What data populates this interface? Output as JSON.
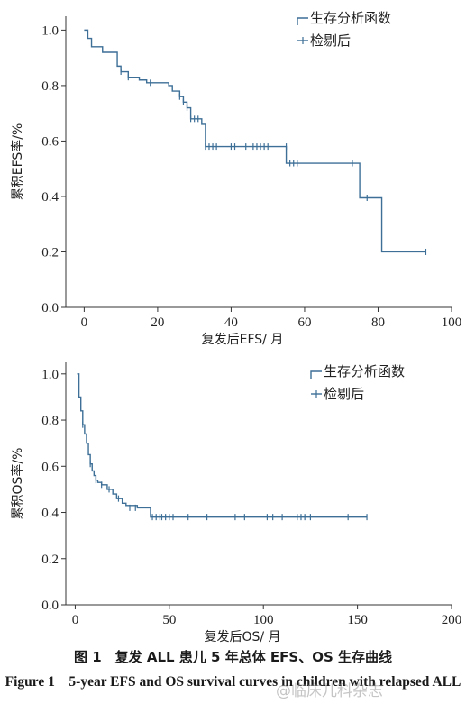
{
  "chart_data": [
    {
      "type": "line",
      "title": "",
      "xlabel": "复发后EFS/ 月",
      "ylabel": "累积EFS率/%",
      "xlim": [
        -5,
        100
      ],
      "ylim": [
        0.0,
        1.05
      ],
      "xticks": [
        0,
        20,
        40,
        60,
        80,
        100
      ],
      "xtick_labels": [
        "0",
        "20",
        "40",
        "60",
        "80",
        "100"
      ],
      "yticks": [
        0.0,
        0.2,
        0.4,
        0.6,
        0.8,
        1.0
      ],
      "ytick_labels": [
        "0.0",
        "0.2",
        "0.4",
        "0.6",
        "0.8",
        "1.0"
      ],
      "legend": [
        "生存分析函数",
        "检剔后"
      ],
      "legend_position": "top-right",
      "grid": false,
      "survival_steps": [
        [
          0,
          1.0
        ],
        [
          1,
          0.97
        ],
        [
          2,
          0.94
        ],
        [
          5,
          0.92
        ],
        [
          9,
          0.87
        ],
        [
          10,
          0.85
        ],
        [
          12,
          0.83
        ],
        [
          15,
          0.82
        ],
        [
          17,
          0.81
        ],
        [
          23,
          0.8
        ],
        [
          24,
          0.78
        ],
        [
          26,
          0.76
        ],
        [
          27,
          0.74
        ],
        [
          28,
          0.72
        ],
        [
          29,
          0.68
        ],
        [
          32,
          0.66
        ],
        [
          33,
          0.58
        ],
        [
          55,
          0.52
        ],
        [
          75,
          0.395
        ],
        [
          81,
          0.2
        ],
        [
          93,
          0.2
        ]
      ],
      "censored": [
        [
          10,
          0.85
        ],
        [
          12,
          0.83
        ],
        [
          18,
          0.81
        ],
        [
          26,
          0.76
        ],
        [
          27,
          0.74
        ],
        [
          28,
          0.72
        ],
        [
          29,
          0.68
        ],
        [
          30,
          0.68
        ],
        [
          31,
          0.68
        ],
        [
          33,
          0.58
        ],
        [
          34,
          0.58
        ],
        [
          35,
          0.58
        ],
        [
          36,
          0.58
        ],
        [
          40,
          0.58
        ],
        [
          41,
          0.58
        ],
        [
          44,
          0.58
        ],
        [
          46,
          0.58
        ],
        [
          47,
          0.58
        ],
        [
          48,
          0.58
        ],
        [
          49,
          0.58
        ],
        [
          50,
          0.58
        ],
        [
          55,
          0.58
        ],
        [
          56,
          0.52
        ],
        [
          57,
          0.52
        ],
        [
          58,
          0.52
        ],
        [
          73,
          0.52
        ],
        [
          77,
          0.395
        ],
        [
          93,
          0.2
        ]
      ]
    },
    {
      "type": "line",
      "title": "",
      "xlabel": "复发后OS/ 月",
      "ylabel": "累积OS率/%",
      "xlim": [
        -5,
        200
      ],
      "ylim": [
        0.0,
        1.05
      ],
      "xticks": [
        0,
        50,
        100,
        150,
        200
      ],
      "xtick_labels": [
        "0",
        "50",
        "100",
        "150",
        "200"
      ],
      "yticks": [
        0.0,
        0.2,
        0.4,
        0.6,
        0.8,
        1.0
      ],
      "ytick_labels": [
        "0.0",
        "0.2",
        "0.4",
        "0.6",
        "0.8",
        "1.0"
      ],
      "legend": [
        "生存分析函数",
        "检剔后"
      ],
      "legend_position": "top-right",
      "grid": false,
      "survival_steps": [
        [
          1,
          1.0
        ],
        [
          2,
          0.9
        ],
        [
          3,
          0.84
        ],
        [
          4,
          0.78
        ],
        [
          5,
          0.74
        ],
        [
          6,
          0.7
        ],
        [
          7,
          0.65
        ],
        [
          8,
          0.61
        ],
        [
          9,
          0.58
        ],
        [
          10,
          0.56
        ],
        [
          11,
          0.54
        ],
        [
          12,
          0.53
        ],
        [
          14,
          0.52
        ],
        [
          17,
          0.5
        ],
        [
          20,
          0.48
        ],
        [
          22,
          0.46
        ],
        [
          25,
          0.44
        ],
        [
          27,
          0.43
        ],
        [
          33,
          0.42
        ],
        [
          40,
          0.38
        ],
        [
          155,
          0.38
        ]
      ],
      "censored": [
        [
          4,
          0.78
        ],
        [
          8,
          0.61
        ],
        [
          11,
          0.54
        ],
        [
          14,
          0.52
        ],
        [
          18,
          0.5
        ],
        [
          23,
          0.46
        ],
        [
          29,
          0.42
        ],
        [
          32,
          0.42
        ],
        [
          41,
          0.38
        ],
        [
          43,
          0.38
        ],
        [
          45,
          0.38
        ],
        [
          46,
          0.38
        ],
        [
          48,
          0.38
        ],
        [
          50,
          0.38
        ],
        [
          52,
          0.38
        ],
        [
          60,
          0.38
        ],
        [
          70,
          0.38
        ],
        [
          85,
          0.38
        ],
        [
          90,
          0.38
        ],
        [
          102,
          0.38
        ],
        [
          105,
          0.38
        ],
        [
          110,
          0.38
        ],
        [
          118,
          0.38
        ],
        [
          120,
          0.38
        ],
        [
          122,
          0.38
        ],
        [
          125,
          0.38
        ],
        [
          145,
          0.38
        ],
        [
          155,
          0.38
        ]
      ]
    }
  ],
  "caption": {
    "cn": "图 1　复发 ALL 患儿 5 年总体 EFS、OS 生存曲线",
    "en": "Figure 1　5-year EFS and OS survival curves in children with relapsed ALL"
  },
  "watermark": "@临床儿科杂志"
}
